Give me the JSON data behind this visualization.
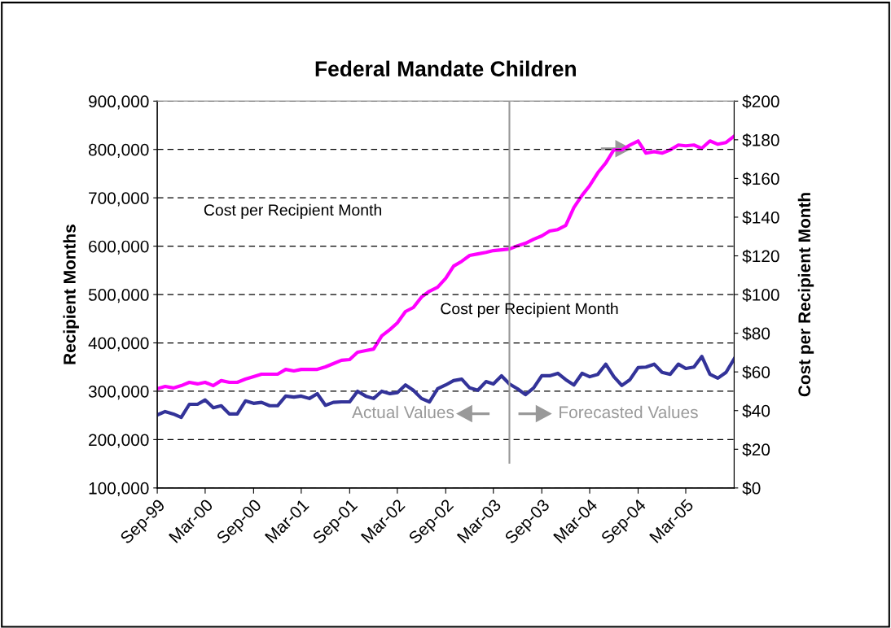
{
  "chart_data": {
    "type": "line",
    "title": "Federal Mandate Children",
    "ylabel": "Recipient Months",
    "y2label": "Cost per Recipient Month",
    "x": [
      "1999-09",
      "1999-10",
      "1999-11",
      "1999-12",
      "2000-01",
      "2000-02",
      "2000-03",
      "2000-04",
      "2000-05",
      "2000-06",
      "2000-07",
      "2000-08",
      "2000-09",
      "2000-10",
      "2000-11",
      "2000-12",
      "2001-01",
      "2001-02",
      "2001-03",
      "2001-04",
      "2001-05",
      "2001-06",
      "2001-07",
      "2001-08",
      "2001-09",
      "2001-10",
      "2001-11",
      "2001-12",
      "2002-01",
      "2002-02",
      "2002-03",
      "2002-04",
      "2002-05",
      "2002-06",
      "2002-07",
      "2002-08",
      "2002-09",
      "2002-10",
      "2002-11",
      "2002-12",
      "2003-01",
      "2003-02",
      "2003-03",
      "2003-04",
      "2003-05",
      "2003-06",
      "2003-07",
      "2003-08",
      "2003-09",
      "2003-10",
      "2003-11",
      "2003-12",
      "2004-01",
      "2004-02",
      "2004-03",
      "2004-04",
      "2004-05",
      "2004-06",
      "2004-07",
      "2004-08",
      "2004-09",
      "2004-10",
      "2004-11",
      "2004-12",
      "2005-01",
      "2005-02",
      "2005-03",
      "2005-04",
      "2005-05",
      "2005-06",
      "2005-07",
      "2005-08",
      "2005-09"
    ],
    "series": [
      {
        "color": "#333399",
        "values": [
          251000,
          258000,
          253000,
          246000,
          273000,
          273000,
          282000,
          266000,
          270000,
          253000,
          253000,
          280000,
          275000,
          277000,
          270000,
          270000,
          290000,
          288000,
          290000,
          285000,
          295000,
          271000,
          277000,
          278000,
          278000,
          300000,
          290000,
          285000,
          300000,
          295000,
          297000,
          313000,
          302000,
          285000,
          278000,
          305000,
          313000,
          322000,
          325000,
          307000,
          302000,
          320000,
          315000,
          332000,
          315000,
          305000,
          293000,
          307000,
          332000,
          332000,
          337000,
          324000,
          313000,
          337000,
          330000,
          335000,
          356000,
          330000,
          312000,
          324000,
          349000,
          350000,
          356000,
          339000,
          335000,
          356000,
          347000,
          350000,
          372000,
          335000,
          327000,
          339000,
          367000
        ]
      },
      {
        "color": "#ff00ff",
        "axis": "y2",
        "values": [
          51.3,
          52.5,
          51.7,
          52.9,
          54.6,
          53.8,
          54.6,
          52.9,
          55.5,
          54.6,
          54.6,
          56.3,
          57.6,
          58.8,
          58.8,
          58.8,
          61.3,
          60.5,
          61.3,
          61.3,
          61.3,
          62.6,
          64.3,
          66.0,
          66.4,
          70.2,
          71.0,
          71.8,
          78.6,
          81.9,
          85.3,
          91.2,
          93.3,
          98.7,
          101.7,
          103.8,
          108.4,
          114.7,
          117.2,
          120.2,
          121.0,
          121.8,
          122.7,
          123.1,
          123.5,
          125.2,
          126.5,
          128.6,
          130.3,
          132.8,
          133.6,
          135.7,
          145.0,
          151.3,
          156.3,
          163.0,
          168.0,
          174.8,
          174.8,
          177.3,
          179.4,
          173.1,
          173.9,
          173.1,
          174.8,
          177.3,
          176.9,
          177.3,
          175.6,
          179.4,
          177.7,
          178.6,
          181.9
        ]
      }
    ],
    "xlim": [
      "1999-09",
      "2005-09"
    ],
    "xticks": [
      {
        "value": "1999-09",
        "label": "Sep-99"
      },
      {
        "value": "2000-03",
        "label": "Mar-00"
      },
      {
        "value": "2000-09",
        "label": "Sep-00"
      },
      {
        "value": "2001-03",
        "label": "Mar-01"
      },
      {
        "value": "2001-09",
        "label": "Sep-01"
      },
      {
        "value": "2002-03",
        "label": "Mar-02"
      },
      {
        "value": "2002-09",
        "label": "Sep-02"
      },
      {
        "value": "2003-03",
        "label": "Mar-03"
      },
      {
        "value": "2003-09",
        "label": "Sep-03"
      },
      {
        "value": "2004-03",
        "label": "Mar-04"
      },
      {
        "value": "2004-09",
        "label": "Sep-04"
      },
      {
        "value": "2005-03",
        "label": "Mar-05"
      }
    ],
    "ylim": [
      100000,
      900000
    ],
    "yticks": [
      {
        "value": 100000,
        "label": "100,000"
      },
      {
        "value": 200000,
        "label": "200,000"
      },
      {
        "value": 300000,
        "label": "300,000"
      },
      {
        "value": 400000,
        "label": "400,000"
      },
      {
        "value": 500000,
        "label": "500,000"
      },
      {
        "value": 600000,
        "label": "600,000"
      },
      {
        "value": 700000,
        "label": "700,000"
      },
      {
        "value": 800000,
        "label": "800,000"
      },
      {
        "value": 900000,
        "label": "900,000"
      }
    ],
    "y2lim": [
      0,
      200
    ],
    "y2ticks": [
      {
        "value": 0,
        "label": "$0"
      },
      {
        "value": 20,
        "label": "$20"
      },
      {
        "value": 40,
        "label": "$40"
      },
      {
        "value": 60,
        "label": "$60"
      },
      {
        "value": 80,
        "label": "$80"
      },
      {
        "value": 100,
        "label": "$100"
      },
      {
        "value": 120,
        "label": "$120"
      },
      {
        "value": 140,
        "label": "$140"
      },
      {
        "value": 160,
        "label": "$160"
      },
      {
        "value": 180,
        "label": "$180"
      },
      {
        "value": 200,
        "label": "$200"
      }
    ],
    "ref_lines": [
      {
        "axis": "x",
        "value": "2003-05",
        "color": "#999999"
      }
    ],
    "annotations": [
      "Cost per Recipient Month",
      "Cost per Recipient Month",
      "Actual Values",
      "Forecasted Values"
    ],
    "grid": "y",
    "legend": false,
    "marker": "none",
    "line_style": "solid"
  }
}
